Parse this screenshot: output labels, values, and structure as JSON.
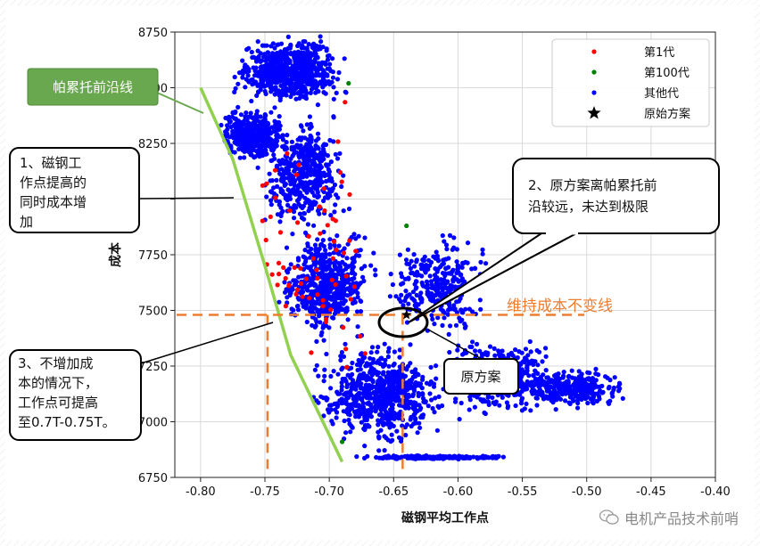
{
  "chart_data": {
    "type": "scatter",
    "xlabel": "磁钢平均工作点",
    "ylabel": "成本",
    "xlim": [
      -0.82,
      -0.4
    ],
    "ylim": [
      6750,
      8750
    ],
    "xticks": [
      -0.8,
      -0.75,
      -0.7,
      -0.65,
      -0.6,
      -0.55,
      -0.5,
      -0.45,
      -0.4
    ],
    "xtick_labels": [
      "-0.80",
      "-0.75",
      "-0.70",
      "-0.65",
      "-0.60",
      "-0.55",
      "-0.50",
      "-0.45",
      "-0.40"
    ],
    "yticks": [
      6750,
      7000,
      7250,
      7500,
      7750,
      8000,
      8250,
      8500,
      8750
    ],
    "ytick_labels": [
      "6750",
      "7000",
      "7250",
      "7500",
      "7750",
      "",
      "8250",
      "8500",
      "8750"
    ],
    "grid": true,
    "legend_position": "top-right",
    "legend": [
      {
        "label": "第1代",
        "marker": "dot",
        "color": "#ff0000"
      },
      {
        "label": "第100代",
        "marker": "dot",
        "color": "#008000"
      },
      {
        "label": "其他代",
        "marker": "dot",
        "color": "#0000ff"
      },
      {
        "label": "原始方案",
        "marker": "star",
        "color": "#000000"
      }
    ],
    "series": [
      {
        "name": "其他代",
        "color": "#0000ff",
        "clusters": [
          {
            "x": [
              -0.78,
              -0.68
            ],
            "y": [
              8400,
              8750
            ],
            "n": 700
          },
          {
            "x": [
              -0.79,
              -0.73
            ],
            "y": [
              8150,
              8420
            ],
            "n": 450
          },
          {
            "x": [
              -0.76,
              -0.68
            ],
            "y": [
              7800,
              8400
            ],
            "n": 450
          },
          {
            "x": [
              -0.745,
              -0.66
            ],
            "y": [
              7350,
              7900
            ],
            "n": 550
          },
          {
            "x": [
              -0.66,
              -0.57
            ],
            "y": [
              7350,
              7900
            ],
            "n": 300
          },
          {
            "x": [
              -0.72,
              -0.6
            ],
            "y": [
              6850,
              7400
            ],
            "n": 700
          },
          {
            "x": [
              -0.62,
              -0.52
            ],
            "y": [
              7000,
              7400
            ],
            "n": 450
          },
          {
            "x": [
              -0.56,
              -0.46
            ],
            "y": [
              7050,
              7250
            ],
            "n": 300
          },
          {
            "x": [
              -0.69,
              -0.55
            ],
            "y": [
              6830,
              6850
            ],
            "n": 200
          }
        ]
      },
      {
        "name": "第1代",
        "color": "#ff0000",
        "clusters": [
          {
            "x": [
              -0.77,
              -0.66
            ],
            "y": [
              7000,
              8500
            ],
            "n": 70
          }
        ]
      },
      {
        "name": "第100代",
        "color": "#008000",
        "points": [
          [
            -0.64,
            7880
          ],
          [
            -0.69,
            6910
          ],
          [
            -0.685,
            8520
          ]
        ]
      },
      {
        "name": "原始方案",
        "color": "#000000",
        "marker": "star",
        "points": [
          [
            -0.64,
            7480
          ]
        ]
      }
    ],
    "pareto_front": [
      [
        -0.8,
        8500
      ],
      [
        -0.775,
        8180
      ],
      [
        -0.75,
        7700
      ],
      [
        -0.73,
        7300
      ],
      [
        -0.69,
        6820
      ]
    ],
    "reference_lines": {
      "constant_cost": 7480,
      "original_x": -0.643,
      "front_x_at_constant_cost": -0.748
    },
    "annotations": {
      "pareto_label": "帕累托前沿线",
      "callout1": [
        "1、磁钢工",
        "作点提高的",
        "同时成本增",
        "加"
      ],
      "callout2": [
        "2、原方案离帕累托前",
        "沿较远，未达到极限"
      ],
      "callout3": [
        "3、不增加成",
        "本的情况下，",
        "工作点可提高",
        "至0.7T-0.75T。"
      ],
      "original_label": "原方案",
      "constant_cost_label": "维持成本不变线"
    }
  },
  "watermark": "电机产品技术前哨",
  "colors": {
    "pareto_green": "#92d050",
    "label_green": "#6aa84f",
    "dashed_orange": "#ed7d31"
  }
}
